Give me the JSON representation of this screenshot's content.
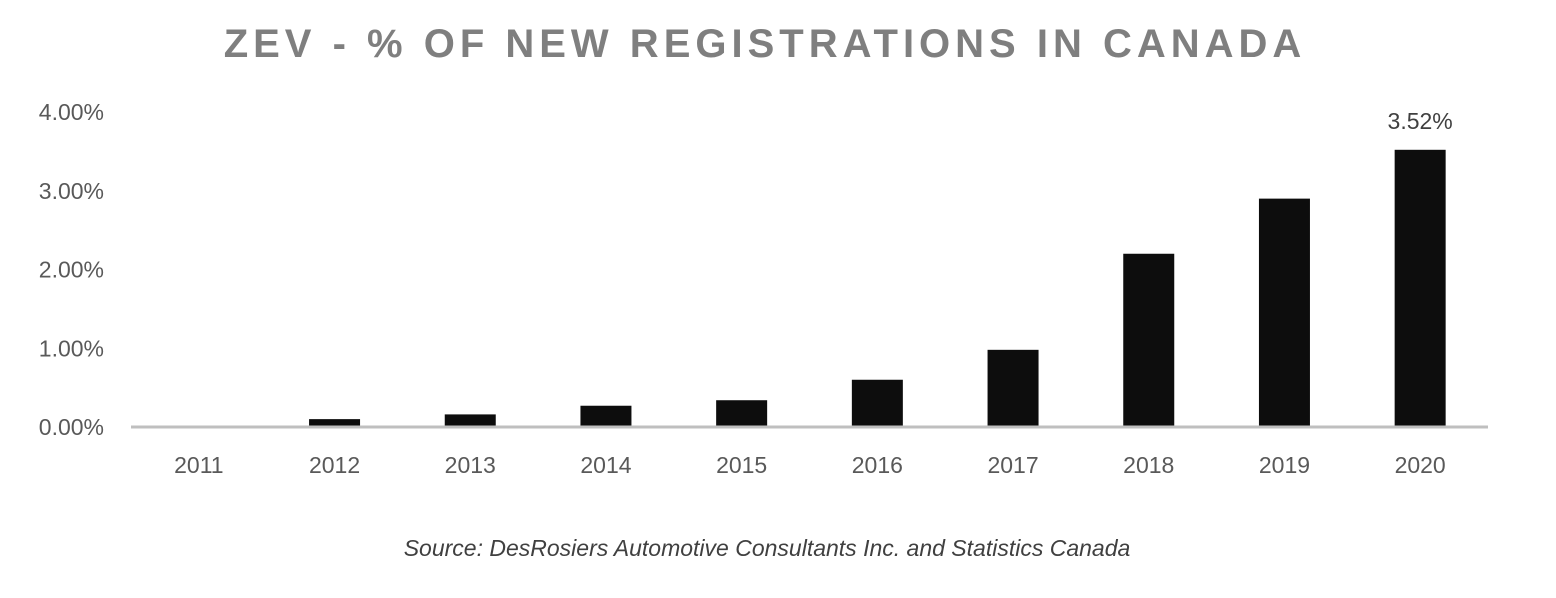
{
  "chart_data": {
    "type": "bar",
    "title": "ZEV - % OF NEW REGISTRATIONS IN CANADA",
    "source": "Source: DesRosiers Automotive Consultants Inc. and Statistics Canada",
    "categories": [
      "2011",
      "2012",
      "2013",
      "2014",
      "2015",
      "2016",
      "2017",
      "2018",
      "2019",
      "2020"
    ],
    "values": [
      0.0,
      0.1,
      0.16,
      0.27,
      0.34,
      0.6,
      0.98,
      2.2,
      2.9,
      3.52
    ],
    "y_ticks": [
      "0.00%",
      "1.00%",
      "2.00%",
      "3.00%",
      "4.00%"
    ],
    "ylim": [
      0,
      4
    ],
    "data_labels": [
      {
        "category": "2020",
        "text": "3.52%"
      }
    ],
    "xlabel": "",
    "ylabel": "",
    "grid": false,
    "legend": "none",
    "colors": {
      "bar": "#0d0d0d",
      "axis": "#bfbfbf",
      "title": "#7f7f7f"
    }
  }
}
